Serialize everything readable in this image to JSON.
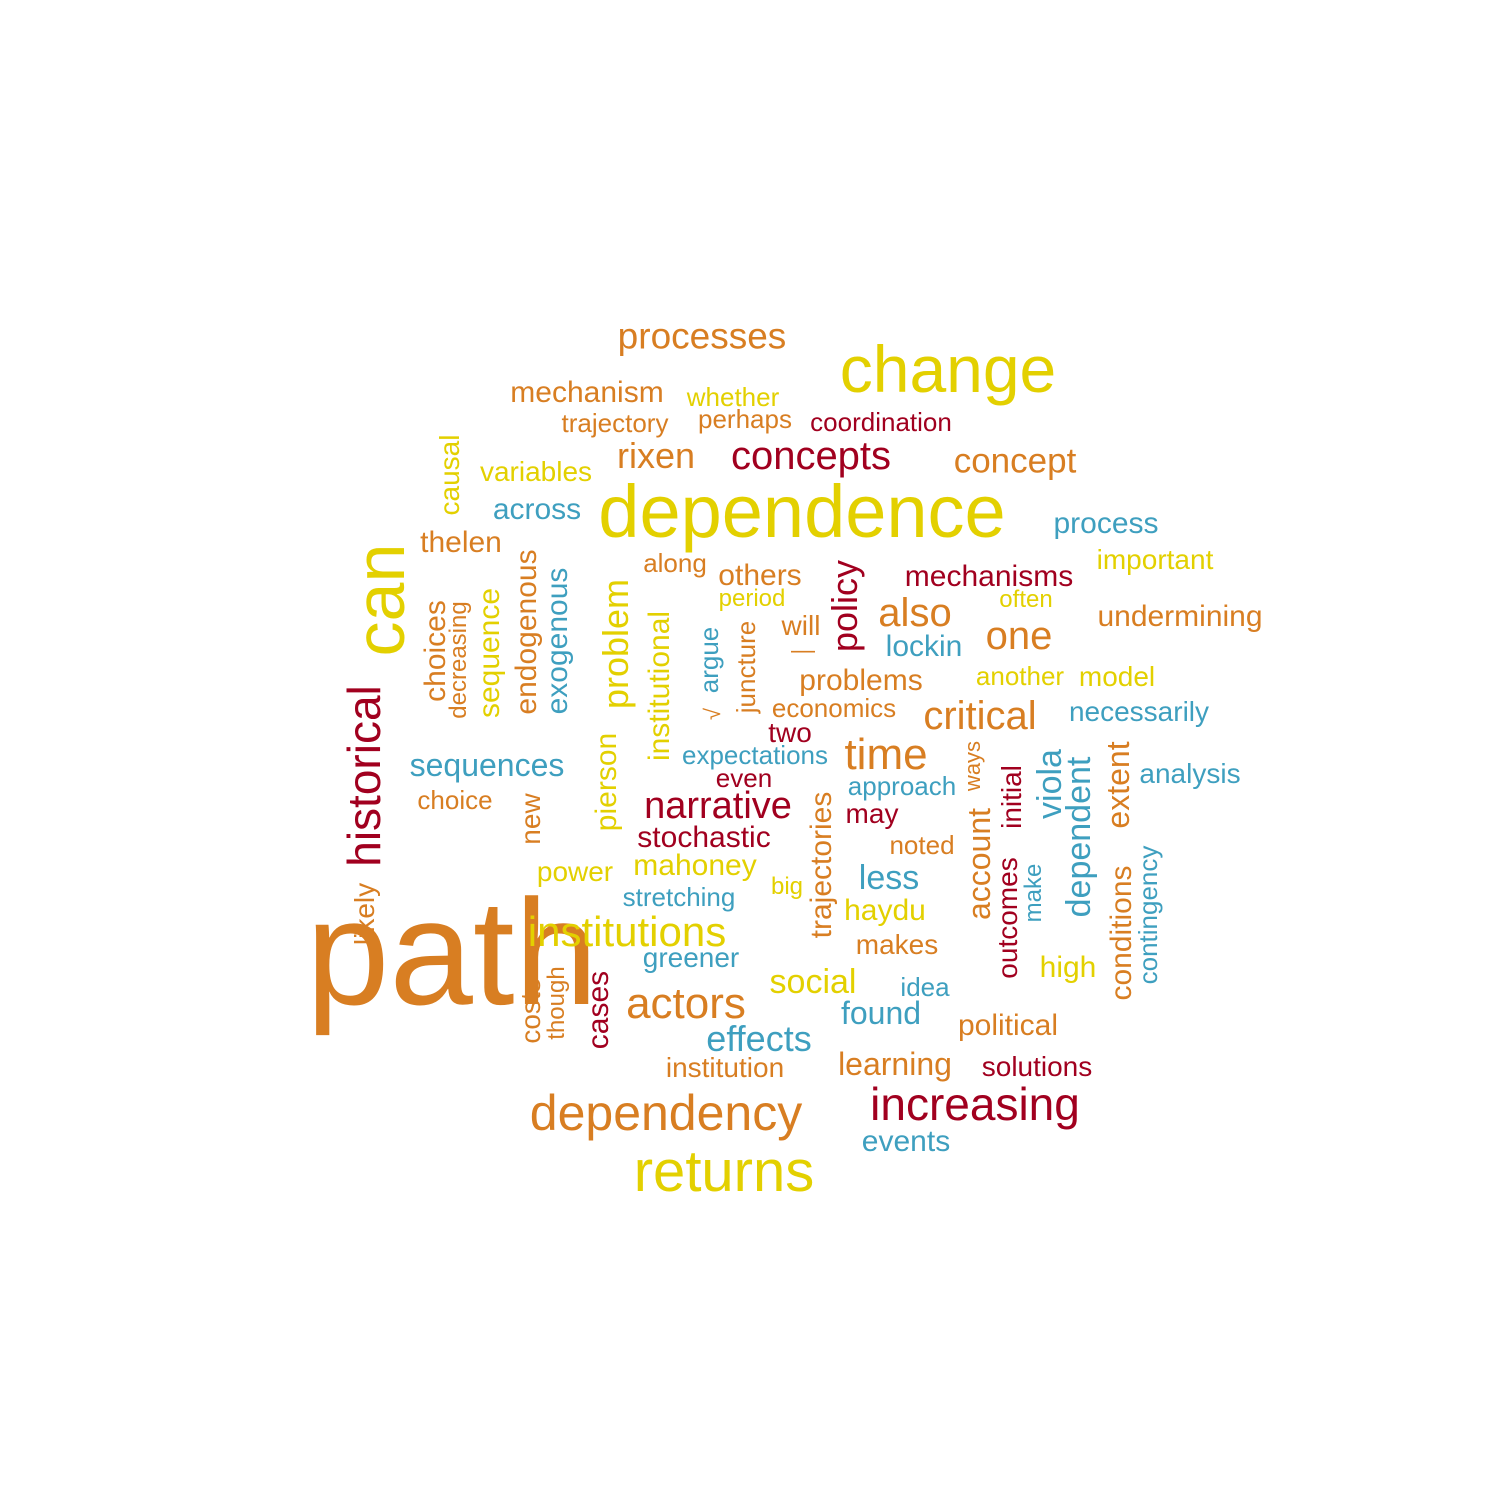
{
  "palette": {
    "yellow": "#e3d000",
    "orange": "#d87e22",
    "red": "#a1001f",
    "blue": "#3e9fbf"
  },
  "words": [
    {
      "text": "path",
      "color": "orange"
    },
    {
      "text": "dependence",
      "color": "yellow"
    },
    {
      "text": "change",
      "color": "yellow"
    },
    {
      "text": "can",
      "color": "yellow"
    },
    {
      "text": "returns",
      "color": "yellow"
    },
    {
      "text": "dependency",
      "color": "orange"
    },
    {
      "text": "increasing",
      "color": "red"
    },
    {
      "text": "historical",
      "color": "red"
    },
    {
      "text": "processes",
      "color": "orange"
    },
    {
      "text": "concepts",
      "color": "red"
    },
    {
      "text": "institutions",
      "color": "yellow"
    },
    {
      "text": "actors",
      "color": "orange"
    },
    {
      "text": "narrative",
      "color": "red"
    },
    {
      "text": "time",
      "color": "orange"
    },
    {
      "text": "critical",
      "color": "orange"
    },
    {
      "text": "also",
      "color": "orange"
    },
    {
      "text": "one",
      "color": "orange"
    },
    {
      "text": "effects",
      "color": "blue"
    },
    {
      "text": "rixen",
      "color": "orange"
    },
    {
      "text": "concept",
      "color": "orange"
    },
    {
      "text": "policy",
      "color": "red"
    },
    {
      "text": "problem",
      "color": "yellow"
    },
    {
      "text": "mechanism",
      "color": "orange"
    },
    {
      "text": "sequences",
      "color": "blue"
    },
    {
      "text": "social",
      "color": "yellow"
    },
    {
      "text": "less",
      "color": "blue"
    },
    {
      "text": "viola",
      "color": "blue"
    },
    {
      "text": "dependent",
      "color": "blue"
    },
    {
      "text": "extent",
      "color": "orange"
    },
    {
      "text": "account",
      "color": "orange"
    },
    {
      "text": "mechanisms",
      "color": "red"
    },
    {
      "text": "process",
      "color": "blue"
    },
    {
      "text": "undermining",
      "color": "orange"
    },
    {
      "text": "endogenous",
      "color": "orange"
    },
    {
      "text": "exogenous",
      "color": "blue"
    },
    {
      "text": "sequence",
      "color": "yellow"
    },
    {
      "text": "choices",
      "color": "orange"
    },
    {
      "text": "institutional",
      "color": "yellow"
    },
    {
      "text": "pierson",
      "color": "yellow"
    },
    {
      "text": "trajectories",
      "color": "orange"
    },
    {
      "text": "conditions",
      "color": "orange"
    },
    {
      "text": "mahoney",
      "color": "yellow"
    },
    {
      "text": "stochastic",
      "color": "red"
    },
    {
      "text": "causal",
      "color": "yellow"
    },
    {
      "text": "thelen",
      "color": "orange"
    },
    {
      "text": "across",
      "color": "blue"
    },
    {
      "text": "variables",
      "color": "yellow"
    },
    {
      "text": "trajectory",
      "color": "orange"
    },
    {
      "text": "whether",
      "color": "yellow"
    },
    {
      "text": "perhaps",
      "color": "orange"
    },
    {
      "text": "coordination",
      "color": "red"
    },
    {
      "text": "important",
      "color": "yellow"
    },
    {
      "text": "others",
      "color": "orange"
    },
    {
      "text": "along",
      "color": "orange"
    },
    {
      "text": "period",
      "color": "yellow"
    },
    {
      "text": "often",
      "color": "yellow"
    },
    {
      "text": "will",
      "color": "orange"
    },
    {
      "text": "lockin",
      "color": "blue"
    },
    {
      "text": "problems",
      "color": "orange"
    },
    {
      "text": "another",
      "color": "yellow"
    },
    {
      "text": "model",
      "color": "yellow"
    },
    {
      "text": "economics",
      "color": "orange"
    },
    {
      "text": "necessarily",
      "color": "blue"
    },
    {
      "text": "two",
      "color": "red"
    },
    {
      "text": "expectations",
      "color": "blue"
    },
    {
      "text": "even",
      "color": "red"
    },
    {
      "text": "approach",
      "color": "blue"
    },
    {
      "text": "analysis",
      "color": "blue"
    },
    {
      "text": "choice",
      "color": "orange"
    },
    {
      "text": "may",
      "color": "red"
    },
    {
      "text": "noted",
      "color": "orange"
    },
    {
      "text": "power",
      "color": "yellow"
    },
    {
      "text": "stretching",
      "color": "blue"
    },
    {
      "text": "big",
      "color": "yellow"
    },
    {
      "text": "haydu",
      "color": "yellow"
    },
    {
      "text": "makes",
      "color": "orange"
    },
    {
      "text": "greener",
      "color": "blue"
    },
    {
      "text": "high",
      "color": "yellow"
    },
    {
      "text": "idea",
      "color": "blue"
    },
    {
      "text": "found",
      "color": "blue"
    },
    {
      "text": "political",
      "color": "orange"
    },
    {
      "text": "institution",
      "color": "orange"
    },
    {
      "text": "learning",
      "color": "orange"
    },
    {
      "text": "solutions",
      "color": "red"
    },
    {
      "text": "events",
      "color": "blue"
    },
    {
      "text": "argue",
      "color": "blue"
    },
    {
      "text": "juncture",
      "color": "orange"
    },
    {
      "text": "decreasing",
      "color": "orange"
    },
    {
      "text": "new",
      "color": "orange"
    },
    {
      "text": "likely",
      "color": "orange"
    },
    {
      "text": "costs",
      "color": "orange"
    },
    {
      "text": "though",
      "color": "orange"
    },
    {
      "text": "cases",
      "color": "red"
    },
    {
      "text": "initial",
      "color": "red"
    },
    {
      "text": "outcomes",
      "color": "red"
    },
    {
      "text": "make",
      "color": "blue"
    },
    {
      "text": "ways",
      "color": "orange"
    },
    {
      "text": "contingency",
      "color": "blue"
    },
    {
      "text": "—",
      "color": "orange"
    },
    {
      "text": "√",
      "color": "orange"
    }
  ]
}
